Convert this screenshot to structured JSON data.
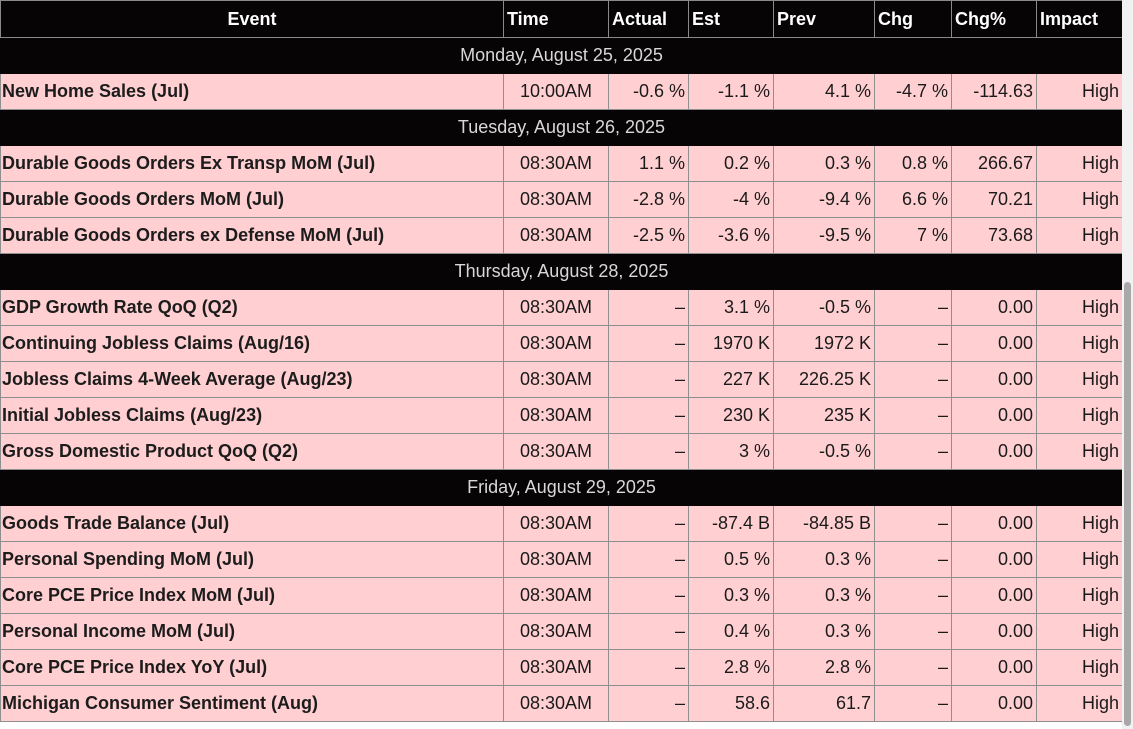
{
  "columns": [
    "Event",
    "Time",
    "Actual",
    "Est",
    "Prev",
    "Chg",
    "Chg%",
    "Impact"
  ],
  "days": [
    {
      "date": "Monday, August 25, 2025",
      "rows": [
        [
          "New Home Sales (Jul)",
          "10:00AM",
          "-0.6 %",
          "-1.1 %",
          "4.1 %",
          "-4.7 %",
          "-114.63",
          "High"
        ]
      ]
    },
    {
      "date": "Tuesday, August 26, 2025",
      "rows": [
        [
          "Durable Goods Orders Ex Transp MoM (Jul)",
          "08:30AM",
          "1.1 %",
          "0.2 %",
          "0.3 %",
          "0.8 %",
          "266.67",
          "High"
        ],
        [
          "Durable Goods Orders MoM (Jul)",
          "08:30AM",
          "-2.8 %",
          "-4 %",
          "-9.4 %",
          "6.6 %",
          "70.21",
          "High"
        ],
        [
          "Durable Goods Orders ex Defense MoM (Jul)",
          "08:30AM",
          "-2.5 %",
          "-3.6 %",
          "-9.5 %",
          "7 %",
          "73.68",
          "High"
        ]
      ]
    },
    {
      "date": "Thursday, August 28, 2025",
      "rows": [
        [
          "GDP Growth Rate QoQ (Q2)",
          "08:30AM",
          "–",
          "3.1 %",
          "-0.5 %",
          "–",
          "0.00",
          "High"
        ],
        [
          "Continuing Jobless Claims (Aug/16)",
          "08:30AM",
          "–",
          "1970 K",
          "1972 K",
          "–",
          "0.00",
          "High"
        ],
        [
          "Jobless Claims 4-Week Average (Aug/23)",
          "08:30AM",
          "–",
          "227 K",
          "226.25 K",
          "–",
          "0.00",
          "High"
        ],
        [
          "Initial Jobless Claims (Aug/23)",
          "08:30AM",
          "–",
          "230 K",
          "235 K",
          "–",
          "0.00",
          "High"
        ],
        [
          "Gross Domestic Product QoQ (Q2)",
          "08:30AM",
          "–",
          "3 %",
          "-0.5 %",
          "–",
          "0.00",
          "High"
        ]
      ]
    },
    {
      "date": "Friday, August 29, 2025",
      "rows": [
        [
          "Goods Trade Balance (Jul)",
          "08:30AM",
          "–",
          "-87.4 B",
          "-84.85 B",
          "–",
          "0.00",
          "High"
        ],
        [
          "Personal Spending MoM (Jul)",
          "08:30AM",
          "–",
          "0.5 %",
          "0.3 %",
          "–",
          "0.00",
          "High"
        ],
        [
          "Core PCE Price Index MoM (Jul)",
          "08:30AM",
          "–",
          "0.3 %",
          "0.3 %",
          "–",
          "0.00",
          "High"
        ],
        [
          "Personal Income MoM (Jul)",
          "08:30AM",
          "–",
          "0.4 %",
          "0.3 %",
          "–",
          "0.00",
          "High"
        ],
        [
          "Core PCE Price Index YoY (Jul)",
          "08:30AM",
          "–",
          "2.8 %",
          "2.8 %",
          "–",
          "0.00",
          "High"
        ],
        [
          "Michigan Consumer Sentiment (Aug)",
          "08:30AM",
          "–",
          "58.6",
          "61.7",
          "–",
          "0.00",
          "High"
        ]
      ]
    }
  ],
  "colors": {
    "header_bg": "#060404",
    "row_bg": "#ffcfd2",
    "border": "#8f8f8f"
  }
}
